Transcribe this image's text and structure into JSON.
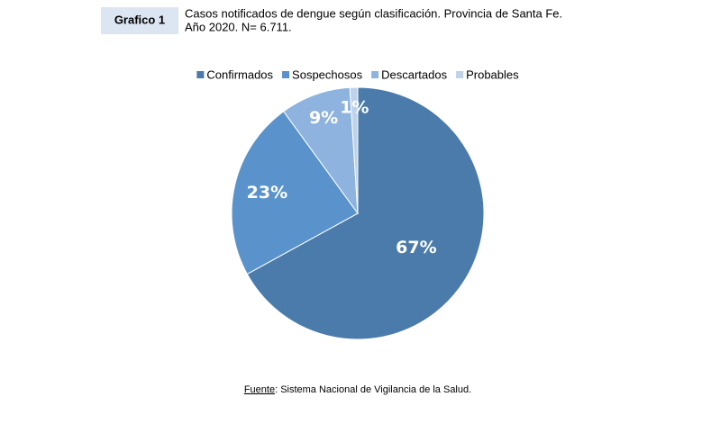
{
  "chart_data": {
    "type": "pie",
    "figure_label": "Grafico 1",
    "title_lines": [
      "Casos notificados de dengue según clasificación. Provincia de Santa Fe.",
      "Año 2020. N= 6.711."
    ],
    "categories": [
      "Confirmados",
      "Sospechosos",
      "Descartados",
      "Probables"
    ],
    "values": [
      67,
      23,
      9,
      1
    ],
    "value_labels": [
      "67%",
      "23%",
      "9%",
      "1%"
    ],
    "colors": [
      "#4a7bab",
      "#5a93cb",
      "#8db3de",
      "#bed2ea"
    ],
    "legend": "top",
    "source_label": "Fuente",
    "source": ": Sistema Nacional de Vigilancia de la Salud."
  }
}
